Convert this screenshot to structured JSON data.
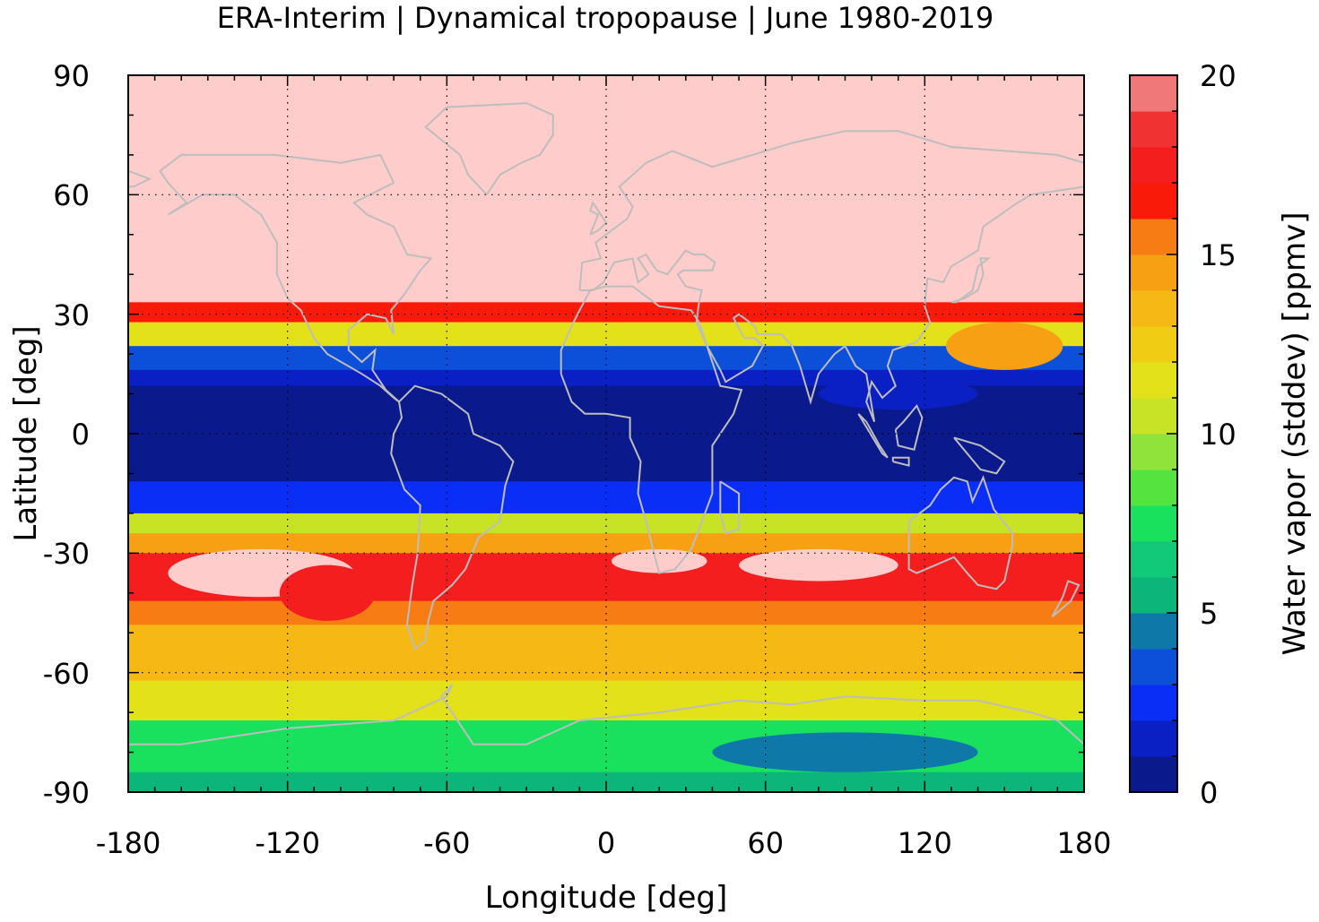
{
  "title": "ERA-Interim | Dynamical tropopause | June 1980-2019",
  "xlabel": "Longitude [deg]",
  "ylabel": "Latitude [deg]",
  "colorbar_label": "Water vapor (stddev) [ppmv]",
  "x_ticks": [
    "-180",
    "-120",
    "-60",
    "0",
    "60",
    "120",
    "180"
  ],
  "y_ticks": [
    "90",
    "60",
    "30",
    "0",
    "-30",
    "-60",
    "-90"
  ],
  "cb_ticks": [
    "20",
    "15",
    "10",
    "5",
    "0"
  ],
  "chart_data": {
    "type": "heatmap",
    "projection": "plate carree (longitude-latitude)",
    "xlim": [
      -180,
      180
    ],
    "ylim": [
      -90,
      90
    ],
    "colorbar_range": [
      0,
      20
    ],
    "colorbar_levels": 20,
    "colorbar_colors": [
      "#0d0d2e",
      "#0a1a8c",
      "#0a1fc4",
      "#0a2ef5",
      "#0c4fd9",
      "#0e78a8",
      "#0cb57a",
      "#12c97a",
      "#19e05d",
      "#55e33f",
      "#8fe33a",
      "#c8e326",
      "#e3e11a",
      "#f0cc14",
      "#f5b814",
      "#f7a014",
      "#f77c14",
      "#fa1a0a",
      "#f51e1e",
      "#f03232",
      "#f07878",
      "#ffcccc"
    ],
    "overlay": "gray coastlines",
    "grid": "dotted at 60 deg longitude / 30 deg latitude",
    "bands": [
      {
        "lat_from": 90,
        "lat_to": 33,
        "value_ppmv": 20
      },
      {
        "lat_from": 33,
        "lat_to": 28,
        "value_ppmv": 16
      },
      {
        "lat_from": 28,
        "lat_to": 22,
        "value_ppmv": 11
      },
      {
        "lat_from": 22,
        "lat_to": 16,
        "value_ppmv": 4
      },
      {
        "lat_from": 16,
        "lat_to": 12,
        "value_ppmv": 2
      },
      {
        "lat_from": 12,
        "lat_to": -12,
        "value_ppmv": 0.5
      },
      {
        "lat_from": -12,
        "lat_to": -20,
        "value_ppmv": 3
      },
      {
        "lat_from": -20,
        "lat_to": -25,
        "value_ppmv": 10
      },
      {
        "lat_from": -25,
        "lat_to": -30,
        "value_ppmv": 14
      },
      {
        "lat_from": -30,
        "lat_to": -42,
        "value_ppmv": 17
      },
      {
        "lat_from": -42,
        "lat_to": -48,
        "value_ppmv": 15
      },
      {
        "lat_from": -48,
        "lat_to": -62,
        "value_ppmv": 13
      },
      {
        "lat_from": -62,
        "lat_to": -72,
        "value_ppmv": 11
      },
      {
        "lat_from": -72,
        "lat_to": -85,
        "value_ppmv": 8
      },
      {
        "lat_from": -85,
        "lat_to": -90,
        "value_ppmv": 6
      }
    ]
  }
}
